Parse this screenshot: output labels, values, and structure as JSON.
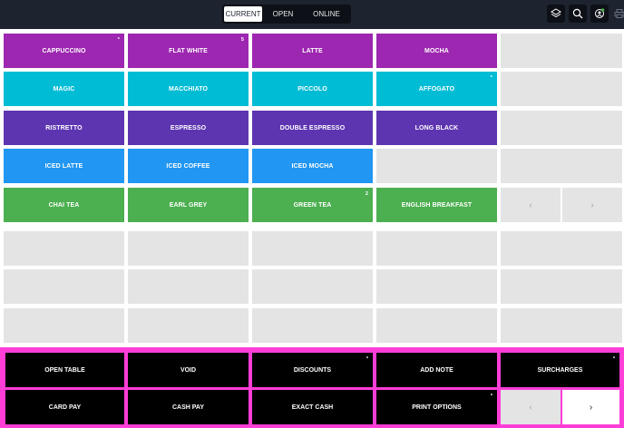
{
  "tabs": [
    {
      "label": "CURRENT",
      "active": true
    },
    {
      "label": "OPEN",
      "active": false
    },
    {
      "label": "ONLINE",
      "active": false
    }
  ],
  "toolbar": {
    "icons": [
      "layers-icon",
      "search-icon",
      "sync-user-icon",
      "printer-icon"
    ]
  },
  "colors": {
    "purple": "#9d27b0",
    "teal": "#00bcd5",
    "violet": "#5e35b1",
    "blue": "#2196f3",
    "green": "#4caf50",
    "empty": "#e4e4e4",
    "highlight": "#ff3dd7"
  },
  "products": {
    "row1": [
      {
        "label": "CAPPUCCINO",
        "badge": "*",
        "color": "purple"
      },
      {
        "label": "FLAT WHITE",
        "badge": "5",
        "color": "purple"
      },
      {
        "label": "LATTE",
        "badge": "",
        "color": "purple"
      },
      {
        "label": "MOCHA",
        "badge": "",
        "color": "purple"
      }
    ],
    "row2": [
      {
        "label": "MAGIC",
        "badge": "",
        "color": "teal"
      },
      {
        "label": "MACCHIATO",
        "badge": "",
        "color": "teal"
      },
      {
        "label": "PICCOLO",
        "badge": "",
        "color": "teal"
      },
      {
        "label": "AFFOGATO",
        "badge": "*",
        "color": "teal"
      }
    ],
    "row3": [
      {
        "label": "RISTRETTO",
        "badge": "",
        "color": "violet"
      },
      {
        "label": "ESPRESSO",
        "badge": "",
        "color": "violet"
      },
      {
        "label": "DOUBLE ESPRESSO",
        "badge": "",
        "color": "violet"
      },
      {
        "label": "LONG BLACK",
        "badge": "",
        "color": "violet"
      }
    ],
    "row4": [
      {
        "label": "ICED LATTE",
        "badge": "",
        "color": "blue"
      },
      {
        "label": "ICED COFFEE",
        "badge": "",
        "color": "blue"
      },
      {
        "label": "ICED MOCHA",
        "badge": "",
        "color": "blue"
      }
    ],
    "row5": [
      {
        "label": "CHAI TEA",
        "badge": "",
        "color": "green"
      },
      {
        "label": "EARL GREY",
        "badge": "",
        "color": "green"
      },
      {
        "label": "GREEN TEA",
        "badge": "2",
        "color": "green"
      },
      {
        "label": "ENGLISH BREAKFAST",
        "badge": "",
        "color": "green"
      }
    ]
  },
  "product_pager": {
    "prev": "‹",
    "next": "›"
  },
  "actions": {
    "row1": [
      {
        "label": "OPEN TABLE",
        "badge": ""
      },
      {
        "label": "VOID",
        "badge": ""
      },
      {
        "label": "DISCOUNTS",
        "badge": "*"
      },
      {
        "label": "ADD NOTE",
        "badge": ""
      },
      {
        "label": "SURCHARGES",
        "badge": "*"
      }
    ],
    "row2": [
      {
        "label": "CARD PAY",
        "badge": ""
      },
      {
        "label": "CASH PAY",
        "badge": ""
      },
      {
        "label": "EXACT CASH",
        "badge": ""
      },
      {
        "label": "PRINT OPTIONS",
        "badge": "*"
      }
    ]
  },
  "action_pager": {
    "prev": "‹",
    "next": "›"
  }
}
